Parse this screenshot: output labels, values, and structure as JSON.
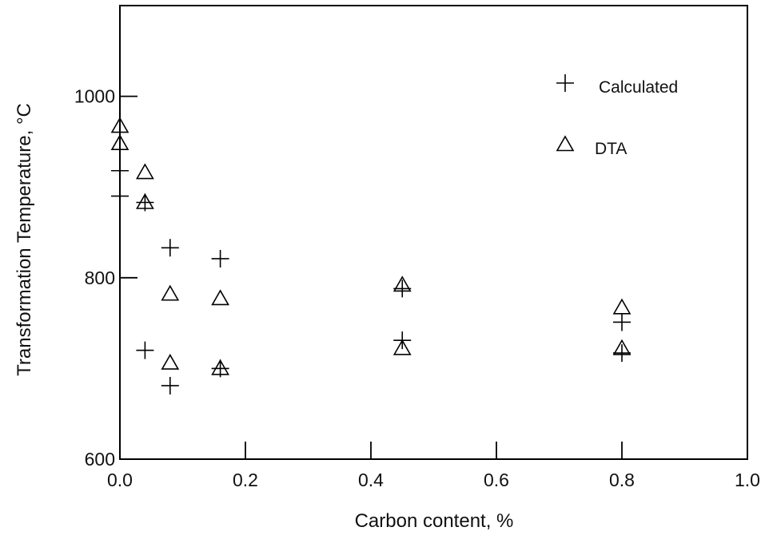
{
  "chart_data": {
    "type": "scatter",
    "xlabel": "Carbon content,  %",
    "ylabel": "Transformation Temperature, °C",
    "xlim": [
      0.0,
      1.0
    ],
    "ylim": [
      600,
      1100
    ],
    "x_ticks": [
      0.0,
      0.2,
      0.4,
      0.6,
      0.8,
      1.0
    ],
    "x_tick_labels": [
      "0.0",
      "0.2",
      "0.4",
      "0.6",
      "0.8",
      "1.0"
    ],
    "y_ticks": [
      600,
      800,
      1000
    ],
    "y_tick_labels": [
      "600",
      "800",
      "1000"
    ],
    "grid": false,
    "legend_position": "top-right",
    "series": [
      {
        "name": "Calculated",
        "marker": "plus",
        "x": [
          0.0,
          0.0,
          0.04,
          0.04,
          0.08,
          0.08,
          0.16,
          0.16,
          0.45,
          0.45,
          0.8,
          0.8
        ],
        "y": [
          918,
          890,
          883,
          720,
          833,
          681,
          821,
          700,
          788,
          731,
          751,
          717
        ]
      },
      {
        "name": "DTA",
        "marker": "triangle",
        "x": [
          0.0,
          0.0,
          0.04,
          0.04,
          0.08,
          0.08,
          0.16,
          0.16,
          0.45,
          0.45,
          0.8,
          0.8
        ],
        "y": [
          967,
          948,
          916,
          883,
          782,
          706,
          777,
          700,
          792,
          722,
          767,
          722
        ]
      }
    ]
  }
}
